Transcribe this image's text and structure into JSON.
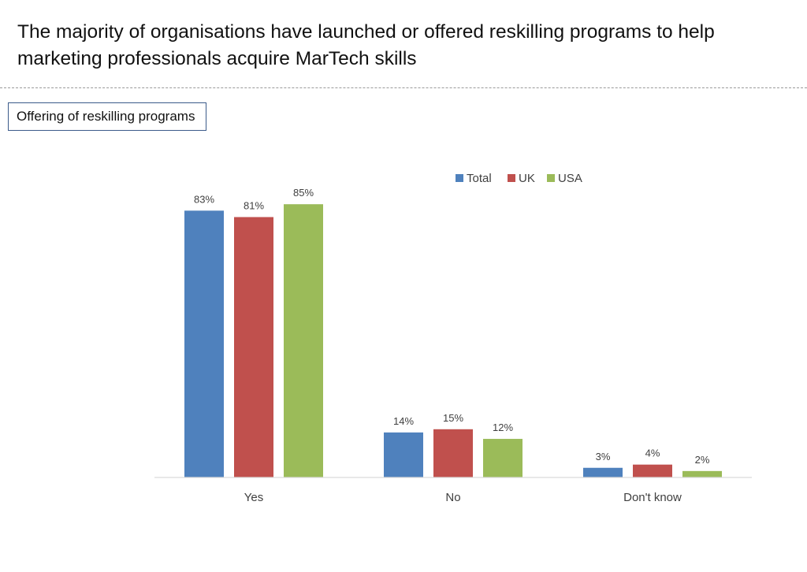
{
  "headline": "The majority of organisations have launched or offered reskilling programs to help marketing professionals acquire MarTech skills",
  "subtitle": "Offering of reskilling programs",
  "colors": {
    "Total": "#4F81BD",
    "UK": "#C0504D",
    "USA": "#9BBB59"
  },
  "chart_data": {
    "type": "bar",
    "title": "Offering of reskilling programs",
    "categories": [
      "Yes",
      "No",
      "Don't know"
    ],
    "series": [
      {
        "name": "Total",
        "values": [
          83,
          14,
          3
        ]
      },
      {
        "name": "UK",
        "values": [
          81,
          15,
          4
        ]
      },
      {
        "name": "USA",
        "values": [
          85,
          12,
          2
        ]
      }
    ],
    "value_suffix": "%",
    "ylim": [
      0,
      100
    ],
    "grid": false,
    "y_axis_visible": false,
    "legend": "top-right"
  }
}
